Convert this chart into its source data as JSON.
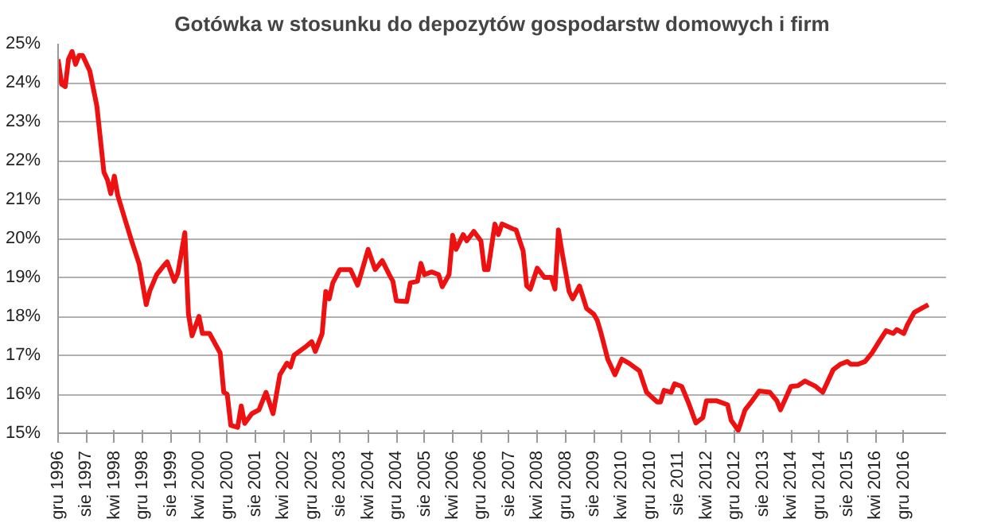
{
  "chart_data": {
    "type": "line",
    "title": "Gotówka w stosunku do depozytów gospodarstw domowych i firm",
    "x": [
      "1996-12",
      "1997-01",
      "1997-02",
      "1997-03",
      "1997-04",
      "1997-05",
      "1997-06",
      "1997-07",
      "1997-09",
      "1997-11",
      "1998-01",
      "1998-02",
      "1998-03",
      "1998-04",
      "1998-05",
      "1998-07",
      "1998-09",
      "1998-11",
      "1999-01",
      "1999-02",
      "1999-04",
      "1999-06",
      "1999-07",
      "1999-09",
      "1999-10",
      "1999-12",
      "2000-01",
      "2000-02",
      "2000-04",
      "2000-05",
      "2000-07",
      "2000-10",
      "2000-11",
      "2000-12",
      "2001-01",
      "2001-03",
      "2001-04",
      "2001-05",
      "2001-07",
      "2001-09",
      "2001-11",
      "2002-01",
      "2002-03",
      "2002-05",
      "2002-06",
      "2002-07",
      "2002-10",
      "2002-12",
      "2003-01",
      "2003-03",
      "2003-04",
      "2003-05",
      "2003-06",
      "2003-08",
      "2003-11",
      "2004-01",
      "2004-02",
      "2004-04",
      "2004-06",
      "2004-08",
      "2004-10",
      "2004-11",
      "2004-12",
      "2005-03",
      "2005-04",
      "2005-06",
      "2005-07",
      "2005-08",
      "2005-10",
      "2005-12",
      "2006-01",
      "2006-03",
      "2006-04",
      "2006-05",
      "2006-07",
      "2006-08",
      "2006-10",
      "2006-12",
      "2007-01",
      "2007-02",
      "2007-04",
      "2007-05",
      "2007-06",
      "2007-09",
      "2007-10",
      "2007-12",
      "2008-01",
      "2008-02",
      "2008-04",
      "2008-06",
      "2008-08",
      "2008-09",
      "2008-10",
      "2008-11",
      "2009-01",
      "2009-02",
      "2009-04",
      "2009-06",
      "2009-08",
      "2009-09",
      "2009-10",
      "2009-12",
      "2010-02",
      "2010-04",
      "2010-06",
      "2010-09",
      "2010-11",
      "2011-02",
      "2011-03",
      "2011-04",
      "2011-06",
      "2011-07",
      "2011-09",
      "2011-11",
      "2012-01",
      "2012-03",
      "2012-04",
      "2012-07",
      "2012-10",
      "2012-11",
      "2013-01",
      "2013-03",
      "2013-05",
      "2013-07",
      "2013-10",
      "2013-12",
      "2014-01",
      "2014-04",
      "2014-06",
      "2014-08",
      "2014-11",
      "2015-01",
      "2015-04",
      "2015-06",
      "2015-08",
      "2015-09",
      "2015-11",
      "2016-01",
      "2016-03",
      "2016-05",
      "2016-07",
      "2016-09",
      "2016-10",
      "2016-12",
      "2017-01",
      "2017-03",
      "2017-05",
      "2017-07"
    ],
    "series": [
      {
        "color": "#ee1111",
        "values": [
          24.6,
          23.96,
          23.9,
          24.6,
          24.8,
          24.47,
          24.7,
          24.7,
          24.3,
          23.4,
          21.7,
          21.5,
          21.15,
          21.6,
          21.1,
          20.5,
          19.9,
          19.35,
          18.3,
          18.65,
          19.07,
          19.3,
          19.4,
          18.9,
          19.1,
          20.15,
          18.06,
          17.5,
          18.0,
          17.56,
          17.56,
          17.06,
          16.05,
          16.0,
          15.2,
          15.15,
          15.7,
          15.25,
          15.5,
          15.6,
          16.05,
          15.5,
          16.5,
          16.8,
          16.7,
          17.0,
          17.2,
          17.35,
          17.1,
          17.56,
          18.64,
          18.45,
          18.86,
          19.2,
          19.2,
          18.8,
          19.1,
          19.72,
          19.2,
          19.43,
          19.07,
          18.9,
          18.4,
          18.38,
          18.86,
          18.9,
          19.36,
          19.07,
          19.14,
          19.07,
          18.76,
          19.07,
          20.08,
          19.72,
          20.1,
          19.94,
          20.18,
          19.94,
          19.2,
          19.2,
          20.37,
          20.1,
          20.37,
          20.25,
          20.22,
          19.68,
          18.78,
          18.7,
          19.24,
          19.0,
          19.0,
          18.7,
          20.22,
          19.65,
          18.64,
          18.45,
          18.78,
          18.2,
          18.06,
          17.9,
          17.6,
          16.9,
          16.5,
          16.9,
          16.8,
          16.6,
          16.05,
          15.8,
          15.8,
          16.1,
          16.05,
          16.27,
          16.2,
          15.76,
          15.26,
          15.4,
          15.83,
          15.83,
          15.73,
          15.33,
          15.07,
          15.6,
          15.83,
          16.08,
          16.05,
          15.83,
          15.6,
          16.2,
          16.22,
          16.34,
          16.2,
          16.05,
          16.63,
          16.77,
          16.84,
          16.77,
          16.77,
          16.84,
          17.06,
          17.35,
          17.63,
          17.56,
          17.66,
          17.56,
          17.78,
          18.1,
          18.2,
          18.3
        ]
      }
    ],
    "xlim": [
      "1996-12",
      "2017-12"
    ],
    "xticks": [
      {
        "value": "1996-12",
        "label": "gru 1996"
      },
      {
        "value": "1997-08",
        "label": "sie 1997"
      },
      {
        "value": "1998-04",
        "label": "kwi 1998"
      },
      {
        "value": "1998-12",
        "label": "gru 1998"
      },
      {
        "value": "1999-08",
        "label": "sie 1999"
      },
      {
        "value": "2000-04",
        "label": "kwi 2000"
      },
      {
        "value": "2000-12",
        "label": "gru 2000"
      },
      {
        "value": "2001-08",
        "label": "sie 2001"
      },
      {
        "value": "2002-04",
        "label": "kwi 2002"
      },
      {
        "value": "2002-12",
        "label": "gru 2002"
      },
      {
        "value": "2003-08",
        "label": "sie 2003"
      },
      {
        "value": "2004-04",
        "label": "kwi 2004"
      },
      {
        "value": "2004-12",
        "label": "gru 2004"
      },
      {
        "value": "2005-08",
        "label": "sie 2005"
      },
      {
        "value": "2006-04",
        "label": "kwi 2006"
      },
      {
        "value": "2006-12",
        "label": "gru 2006"
      },
      {
        "value": "2007-08",
        "label": "sie 2007"
      },
      {
        "value": "2008-04",
        "label": "kwi 2008"
      },
      {
        "value": "2008-12",
        "label": "gru 2008"
      },
      {
        "value": "2009-08",
        "label": "sie 2009"
      },
      {
        "value": "2010-04",
        "label": "kwi 2010"
      },
      {
        "value": "2010-12",
        "label": "gru 2010"
      },
      {
        "value": "2011-08",
        "label": "sie 2011"
      },
      {
        "value": "2012-04",
        "label": "kwi 2012"
      },
      {
        "value": "2012-12",
        "label": "gru 2012"
      },
      {
        "value": "2013-08",
        "label": "sie 2013"
      },
      {
        "value": "2014-04",
        "label": "kwi 2014"
      },
      {
        "value": "2014-12",
        "label": "gru 2014"
      },
      {
        "value": "2015-08",
        "label": "sie 2015"
      },
      {
        "value": "2016-04",
        "label": "kwi 2016"
      },
      {
        "value": "2016-12",
        "label": "gru 2016"
      }
    ],
    "ylim": [
      15,
      25
    ],
    "yticks": [
      {
        "value": 15,
        "label": "15%"
      },
      {
        "value": 16,
        "label": "16%"
      },
      {
        "value": 17,
        "label": "17%"
      },
      {
        "value": 18,
        "label": "18%"
      },
      {
        "value": 19,
        "label": "19%"
      },
      {
        "value": 20,
        "label": "20%"
      },
      {
        "value": 21,
        "label": "21%"
      },
      {
        "value": 22,
        "label": "22%"
      },
      {
        "value": 23,
        "label": "23%"
      },
      {
        "value": 24,
        "label": "24%"
      },
      {
        "value": 25,
        "label": "25%"
      }
    ],
    "grid": "y",
    "marker": "none",
    "line_style": "solid"
  }
}
